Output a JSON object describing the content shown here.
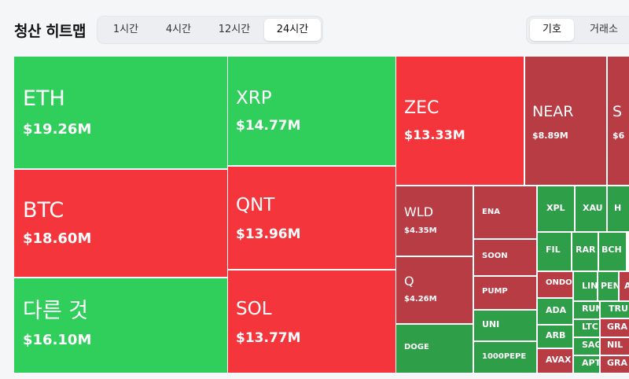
{
  "header": {
    "title": "청산 히트맵"
  },
  "time_tabs": [
    {
      "label": "1시간",
      "active": false
    },
    {
      "label": "4시간",
      "active": false
    },
    {
      "label": "12시간",
      "active": false
    },
    {
      "label": "24시간",
      "active": true
    }
  ],
  "view_tabs": [
    {
      "label": "기호",
      "active": true
    },
    {
      "label": "거래소",
      "active": false
    }
  ],
  "colors": {
    "green": "#30cf5c",
    "red": "#f4363c",
    "dark_green": "#2e9e48",
    "dark_red": "#b83c44"
  },
  "tiles": [
    {
      "symbol": "ETH",
      "value": "$19.26M"
    },
    {
      "symbol": "BTC",
      "value": "$18.60M"
    },
    {
      "symbol": "다른 것",
      "value": "$16.10M"
    },
    {
      "symbol": "XRP",
      "value": "$14.77M"
    },
    {
      "symbol": "QNT",
      "value": "$13.96M"
    },
    {
      "symbol": "SOL",
      "value": "$13.77M"
    },
    {
      "symbol": "ZEC",
      "value": "$13.33M"
    },
    {
      "symbol": "NEAR",
      "value": "$8.89M"
    },
    {
      "symbol": "S",
      "value": "$6"
    },
    {
      "symbol": "WLD",
      "value": "$4.35M"
    },
    {
      "symbol": "Q",
      "value": "$4.26M"
    },
    {
      "symbol": "DOGE",
      "value": ""
    },
    {
      "symbol": "ENA",
      "value": ""
    },
    {
      "symbol": "SOON",
      "value": ""
    },
    {
      "symbol": "PUMP",
      "value": ""
    },
    {
      "symbol": "UNI",
      "value": ""
    },
    {
      "symbol": "1000PEPE",
      "value": ""
    },
    {
      "symbol": "XPL",
      "value": ""
    },
    {
      "symbol": "XAU",
      "value": ""
    },
    {
      "symbol": "H",
      "value": ""
    },
    {
      "symbol": "FIL",
      "value": ""
    },
    {
      "symbol": "RAR",
      "value": ""
    },
    {
      "symbol": "BCH",
      "value": ""
    },
    {
      "symbol": "ONDO",
      "value": ""
    },
    {
      "symbol": "LIN",
      "value": ""
    },
    {
      "symbol": "PEN",
      "value": ""
    },
    {
      "symbol": "A",
      "value": ""
    },
    {
      "symbol": "ADA",
      "value": ""
    },
    {
      "symbol": "RUN",
      "value": ""
    },
    {
      "symbol": "TRU",
      "value": ""
    },
    {
      "symbol": "LTC",
      "value": ""
    },
    {
      "symbol": "GRA",
      "value": ""
    },
    {
      "symbol": "ARB",
      "value": ""
    },
    {
      "symbol": "SAGA",
      "value": ""
    },
    {
      "symbol": "NIL",
      "value": ""
    },
    {
      "symbol": "AVAX",
      "value": ""
    },
    {
      "symbol": "APT",
      "value": ""
    },
    {
      "symbol": "GRA",
      "value": ""
    }
  ]
}
